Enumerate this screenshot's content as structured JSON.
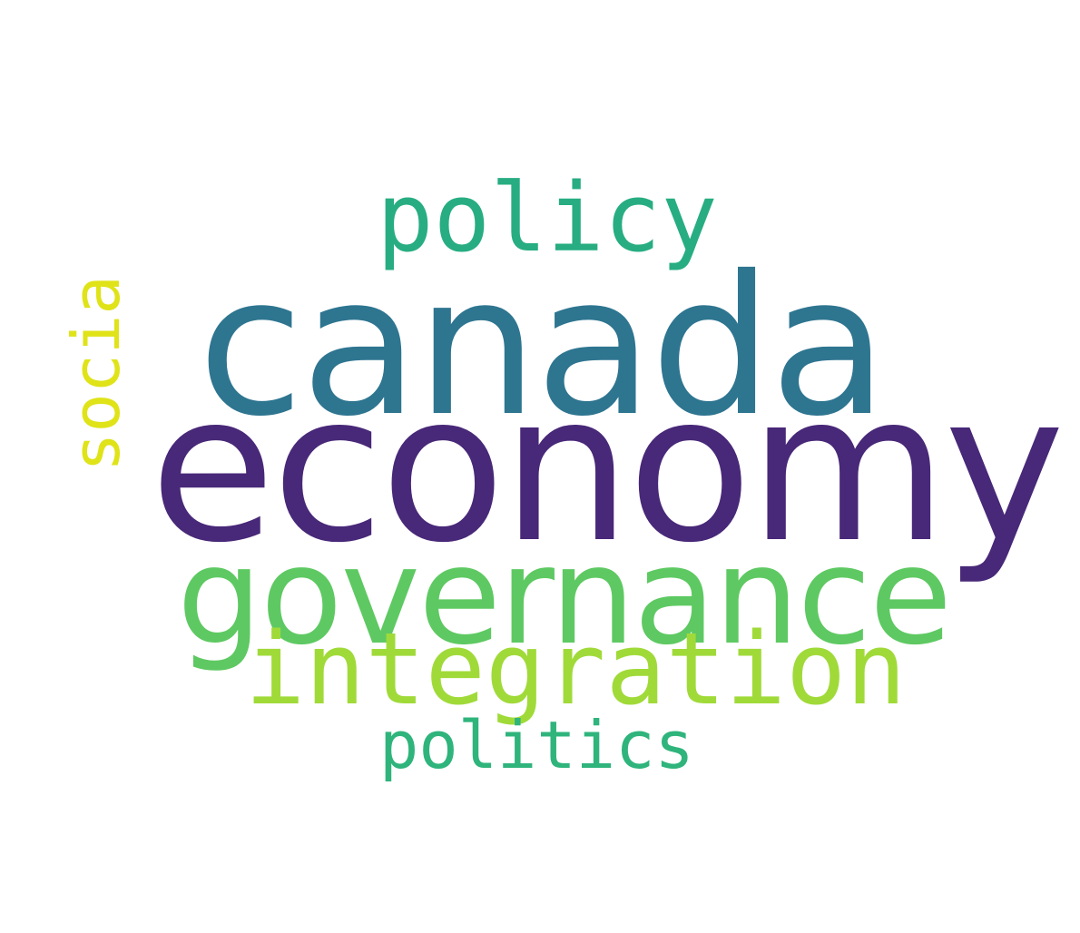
{
  "words": {
    "economy": {
      "text": "economy",
      "color": "#482878"
    },
    "canada": {
      "text": "canada",
      "color": "#2e7590"
    },
    "governance": {
      "text": "governance",
      "color": "#5ec962"
    },
    "integration": {
      "text": "integration",
      "color": "#a0da39"
    },
    "policy": {
      "text": "policy",
      "color": "#27ad81"
    },
    "politics": {
      "text": "politics",
      "color": "#2fb47c"
    },
    "socia": {
      "text": "socia",
      "color": "#dfe318"
    }
  }
}
